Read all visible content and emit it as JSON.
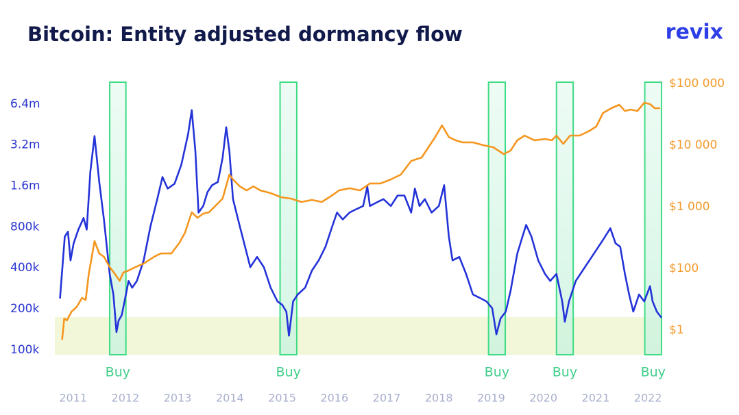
{
  "logo": "revix",
  "chart_data": {
    "type": "line",
    "title": "Bitcoin: Entity adjusted dormancy flow",
    "xlim": [
      2010.65,
      2022.3
    ],
    "xticks": [
      2011,
      2012,
      2013,
      2014,
      2015,
      2016,
      2017,
      2018,
      2019,
      2020,
      2021,
      2022
    ],
    "yscale": "log",
    "ylim": [
      92000,
      9260000
    ],
    "yticks": [
      {
        "value": 100000,
        "label": "100k"
      },
      {
        "value": 200000,
        "label": "200k"
      },
      {
        "value": 400000,
        "label": "400k"
      },
      {
        "value": 800000,
        "label": "800k"
      },
      {
        "value": 1600000,
        "label": "1.6m"
      },
      {
        "value": 3200000,
        "label": "3.2m"
      },
      {
        "value": 6400000,
        "label": "6.4m"
      }
    ],
    "y2scale": "log",
    "y2lim": [
      0.16,
      108000
    ],
    "y2ticks": [
      {
        "value": 1,
        "label": "$1"
      },
      {
        "value": 100,
        "label": "$100"
      },
      {
        "value": 1000,
        "label": "$1 000"
      },
      {
        "value": 10000,
        "label": "$10 000"
      },
      {
        "value": 100000,
        "label": "$100 000"
      }
    ],
    "series": [
      {
        "color": "#2433d8",
        "x": [
          2010.75,
          2010.84,
          2010.9,
          2010.95,
          2011.01,
          2011.1,
          2011.2,
          2011.26,
          2011.33,
          2011.41,
          2011.5,
          2011.59,
          2011.7,
          2011.77,
          2011.83,
          2011.87,
          2011.93,
          2012.01,
          2012.06,
          2012.13,
          2012.22,
          2012.35,
          2012.48,
          2012.61,
          2012.71,
          2012.81,
          2012.94,
          2013.07,
          2013.2,
          2013.27,
          2013.34,
          2013.4,
          2013.49,
          2013.57,
          2013.66,
          2013.77,
          2013.86,
          2013.93,
          2013.99,
          2014.06,
          2014.19,
          2014.29,
          2014.39,
          2014.52,
          2014.65,
          2014.78,
          2014.91,
          2015.0,
          2015.08,
          2015.13,
          2015.21,
          2015.3,
          2015.44,
          2015.57,
          2015.7,
          2015.83,
          2015.96,
          2016.05,
          2016.16,
          2016.29,
          2016.42,
          2016.55,
          2016.63,
          2016.68,
          2016.81,
          2016.94,
          2017.08,
          2017.21,
          2017.34,
          2017.47,
          2017.54,
          2017.63,
          2017.73,
          2017.86,
          2018.0,
          2018.1,
          2018.19,
          2018.26,
          2018.39,
          2018.52,
          2018.65,
          2018.78,
          2018.91,
          2019.02,
          2019.1,
          2019.18,
          2019.28,
          2019.37,
          2019.5,
          2019.6,
          2019.67,
          2019.77,
          2019.9,
          2020.03,
          2020.13,
          2020.25,
          2020.36,
          2020.41,
          2020.49,
          2020.62,
          2020.75,
          2020.88,
          2021.01,
          2021.14,
          2021.28,
          2021.38,
          2021.47,
          2021.56,
          2021.64,
          2021.72,
          2021.83,
          2021.93,
          2022.04,
          2022.09,
          2022.17,
          2022.25
        ],
        "values": [
          241000,
          680000,
          738000,
          454000,
          606000,
          764000,
          930000,
          764000,
          2040000,
          3720000,
          1710000,
          908000,
          361000,
          255000,
          135000,
          164000,
          180000,
          255000,
          321000,
          286000,
          321000,
          454000,
          809000,
          1280000,
          1860000,
          1530000,
          1660000,
          2290000,
          3850000,
          5770000,
          2880000,
          1020000,
          1140000,
          1440000,
          1620000,
          1710000,
          2570000,
          4320000,
          2880000,
          1280000,
          809000,
          572000,
          405000,
          481000,
          405000,
          286000,
          227000,
          214000,
          191000,
          127000,
          227000,
          255000,
          286000,
          382000,
          454000,
          572000,
          809000,
          1020000,
          908000,
          1020000,
          1080000,
          1140000,
          1580000,
          1140000,
          1210000,
          1280000,
          1140000,
          1360000,
          1360000,
          1020000,
          1530000,
          1140000,
          1280000,
          1020000,
          1140000,
          1620000,
          680000,
          454000,
          481000,
          361000,
          255000,
          241000,
          227000,
          202000,
          130000,
          170000,
          191000,
          270000,
          510000,
          680000,
          828000,
          680000,
          454000,
          361000,
          321000,
          361000,
          227000,
          161000,
          227000,
          321000,
          382000,
          454000,
          540000,
          642000,
          782000,
          606000,
          572000,
          361000,
          255000,
          191000,
          255000,
          227000,
          293000,
          227000,
          191000,
          174000
        ]
      },
      {
        "color": "#f5961e",
        "axis": "y2",
        "x": [
          2010.79,
          2010.83,
          2010.88,
          2010.97,
          2011.07,
          2011.17,
          2011.24,
          2011.3,
          2011.41,
          2011.5,
          2011.59,
          2011.7,
          2011.8,
          2011.89,
          2011.96,
          2012.06,
          2012.19,
          2012.35,
          2012.55,
          2012.68,
          2012.88,
          2013.03,
          2013.14,
          2013.27,
          2013.38,
          2013.49,
          2013.6,
          2013.73,
          2013.86,
          2013.99,
          2014.06,
          2014.19,
          2014.32,
          2014.45,
          2014.58,
          2014.78,
          2014.98,
          2015.17,
          2015.37,
          2015.57,
          2015.76,
          2015.96,
          2016.09,
          2016.29,
          2016.49,
          2016.68,
          2016.88,
          2017.08,
          2017.27,
          2017.47,
          2017.67,
          2017.8,
          2017.93,
          2018.06,
          2018.19,
          2018.32,
          2018.45,
          2018.65,
          2018.85,
          2019.04,
          2019.24,
          2019.37,
          2019.5,
          2019.64,
          2019.83,
          2020.03,
          2020.16,
          2020.25,
          2020.38,
          2020.51,
          2020.69,
          2020.86,
          2021.01,
          2021.14,
          2021.3,
          2021.45,
          2021.56,
          2021.67,
          2021.8,
          2021.93,
          2022.04,
          2022.13,
          2022.22
        ],
        "values": [
          0.51,
          2.39,
          2.05,
          3.98,
          5.7,
          11.1,
          9.5,
          66.4,
          278,
          175,
          155,
          105,
          66,
          39.8,
          73.6,
          85.7,
          105,
          120,
          155,
          175,
          175,
          258,
          378,
          815,
          664,
          774,
          815,
          1052,
          1360,
          3330,
          2780,
          2150,
          1850,
          2150,
          1850,
          1670,
          1430,
          1360,
          1200,
          1290,
          1200,
          1540,
          1850,
          2000,
          1850,
          2390,
          2390,
          2780,
          3330,
          5550,
          6310,
          9270,
          13600,
          21000,
          13600,
          12000,
          11100,
          11100,
          10000,
          9270,
          7170,
          8150,
          12000,
          14300,
          12000,
          12600,
          12000,
          14300,
          10500,
          14300,
          14300,
          16700,
          20000,
          33300,
          39800,
          45300,
          35900,
          37800,
          35900,
          48800,
          46400,
          39800,
          39800
        ]
      }
    ],
    "buy_zones": [
      {
        "label": "Buy",
        "x": [
          2011.7,
          2012.01
        ]
      },
      {
        "label": "Buy",
        "x": [
          2014.96,
          2015.28
        ]
      },
      {
        "label": "Buy",
        "x": [
          2018.95,
          2019.27
        ]
      },
      {
        "label": "Buy",
        "x": [
          2020.25,
          2020.57
        ]
      },
      {
        "label": "Buy",
        "x": [
          2021.94,
          2022.26
        ]
      }
    ]
  }
}
